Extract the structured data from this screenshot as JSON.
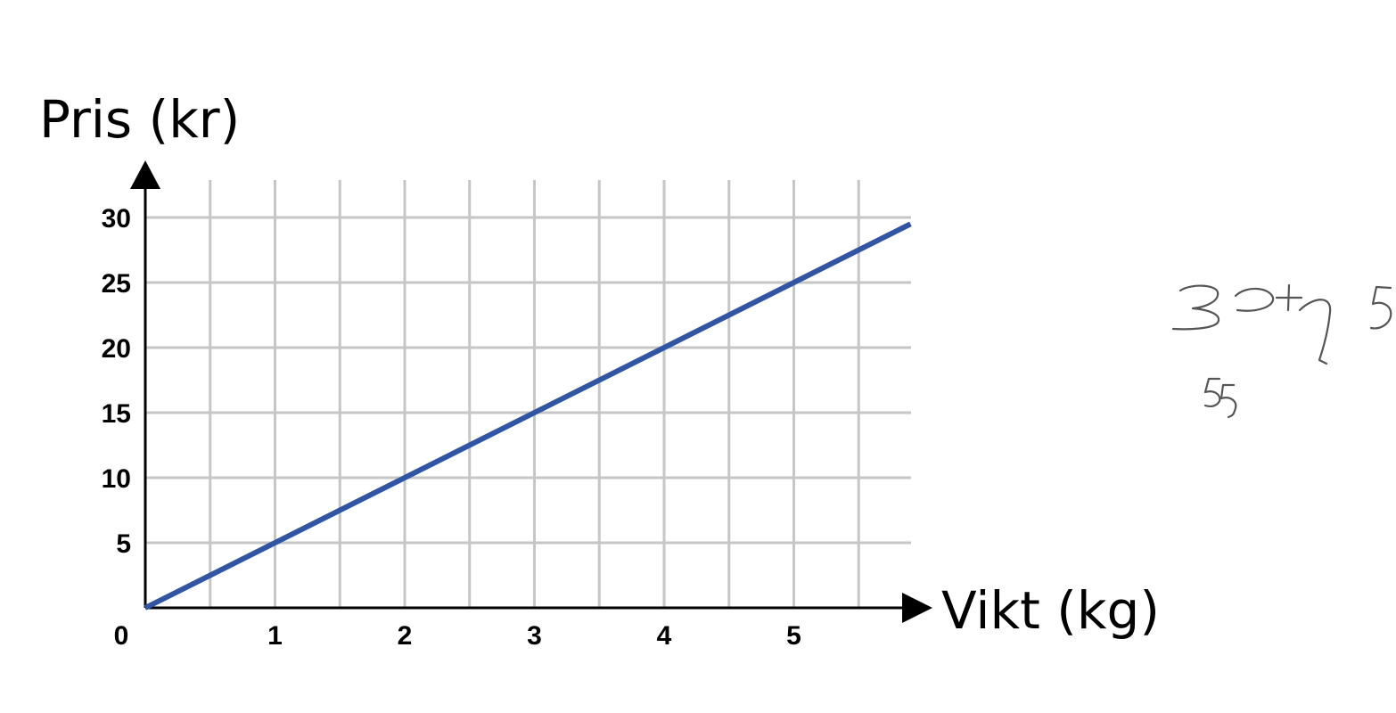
{
  "chart_data": {
    "type": "line",
    "xlabel": "Vikt (kg)",
    "ylabel": "Pris (kr)",
    "xlim": [
      0,
      5.9
    ],
    "ylim": [
      0,
      30
    ],
    "x_ticks": [
      0,
      1,
      2,
      3,
      4,
      5
    ],
    "x_tick_labels": [
      "0",
      "1",
      "2",
      "3",
      "4",
      "5"
    ],
    "y_ticks": [
      5,
      10,
      15,
      20,
      25,
      30
    ],
    "y_tick_labels": [
      "5",
      "10",
      "15",
      "20",
      "25",
      "30"
    ],
    "grid": true,
    "grid_step_x": 0.5,
    "grid_step_y": 5,
    "series": [
      {
        "color": "#2f55a4",
        "x": [
          0,
          5.9
        ],
        "y": [
          0,
          29.5
        ]
      }
    ]
  },
  "annotations": {
    "handwritten_note_1": "30+7 5",
    "handwritten_note_2": "55"
  }
}
